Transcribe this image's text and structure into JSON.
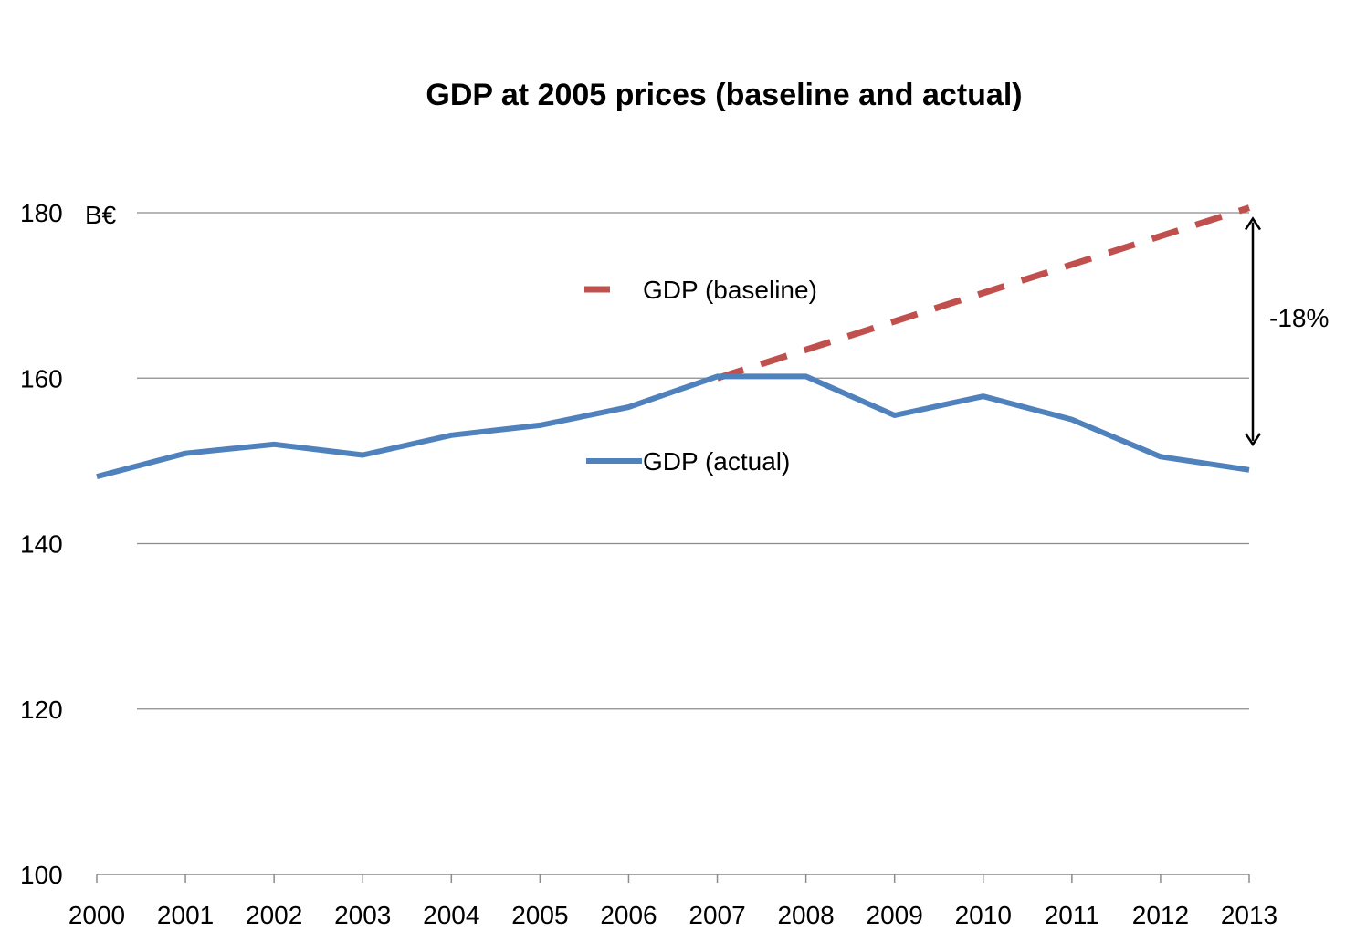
{
  "chart_data": {
    "type": "line",
    "title": "GDP at 2005 prices (baseline and actual)",
    "xlabel": "",
    "ylabel": "",
    "unit_label": "B€",
    "categories": [
      "2000",
      "2001",
      "2002",
      "2003",
      "2004",
      "2005",
      "2006",
      "2007",
      "2008",
      "2009",
      "2010",
      "2011",
      "2012",
      "2013"
    ],
    "yticks": [
      "100",
      "120",
      "140",
      "160",
      "180"
    ],
    "ylim": [
      100,
      180
    ],
    "grid": "horizontal",
    "legend_placement": "inside-center",
    "series": [
      {
        "name": "GDP (baseline)",
        "style": "dashed",
        "color": "#C0504D",
        "x": [
          "2007",
          "2013"
        ],
        "values": [
          160.0,
          180.6
        ]
      },
      {
        "name": "GDP (actual)",
        "style": "solid",
        "color": "#4F81BD",
        "x": [
          "2000",
          "2001",
          "2002",
          "2003",
          "2004",
          "2005",
          "2006",
          "2007",
          "2008",
          "2009",
          "2010",
          "2011",
          "2012",
          "2013"
        ],
        "values": [
          148.1,
          150.9,
          152.0,
          150.7,
          153.1,
          154.3,
          156.5,
          160.2,
          160.2,
          155.5,
          157.8,
          155.0,
          150.5,
          148.9
        ]
      }
    ],
    "annotation": {
      "label": "-18%",
      "x": "2013",
      "from_value": 180.6,
      "to_value": 148.9
    }
  }
}
